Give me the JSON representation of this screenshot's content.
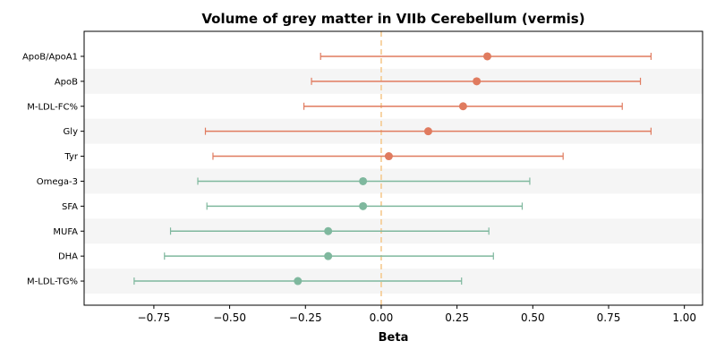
{
  "chart_data": {
    "type": "forest",
    "title": "Volume of grey matter in VIIb Cerebellum (vermis)",
    "xlabel": "Beta",
    "ylabel": "",
    "xlim": [
      -0.98,
      1.06
    ],
    "xticks": [
      -0.75,
      -0.5,
      -0.25,
      0.0,
      0.25,
      0.5,
      0.75,
      1.0
    ],
    "xtick_labels": [
      "−0.75",
      "−0.50",
      "−0.25",
      "0.00",
      "0.25",
      "0.50",
      "0.75",
      "1.00"
    ],
    "reference_line": 0.0,
    "grid": false,
    "legend": "none",
    "row_banding": true,
    "colors": {
      "positive": "#e07b5f",
      "negative": "#7fb89e",
      "reference": "#f5c98e",
      "band": "#f5f5f5"
    },
    "rows": [
      {
        "label": "ApoB/ApoA1",
        "beta": 0.35,
        "lower": -0.2,
        "upper": 0.89,
        "color": "#e07b5f"
      },
      {
        "label": "ApoB",
        "beta": 0.315,
        "lower": -0.23,
        "upper": 0.855,
        "color": "#e07b5f"
      },
      {
        "label": "M-LDL-FC%",
        "beta": 0.27,
        "lower": -0.255,
        "upper": 0.795,
        "color": "#e07b5f"
      },
      {
        "label": "Gly",
        "beta": 0.155,
        "lower": -0.58,
        "upper": 0.89,
        "color": "#e07b5f"
      },
      {
        "label": "Tyr",
        "beta": 0.025,
        "lower": -0.555,
        "upper": 0.6,
        "color": "#e07b5f"
      },
      {
        "label": "Omega-3",
        "beta": -0.06,
        "lower": -0.605,
        "upper": 0.49,
        "color": "#7fb89e"
      },
      {
        "label": "SFA",
        "beta": -0.06,
        "lower": -0.575,
        "upper": 0.465,
        "color": "#7fb89e"
      },
      {
        "label": "MUFA",
        "beta": -0.175,
        "lower": -0.695,
        "upper": 0.355,
        "color": "#7fb89e"
      },
      {
        "label": "DHA",
        "beta": -0.175,
        "lower": -0.715,
        "upper": 0.37,
        "color": "#7fb89e"
      },
      {
        "label": "M-LDL-TG%",
        "beta": -0.275,
        "lower": -0.815,
        "upper": 0.265,
        "color": "#7fb89e"
      }
    ]
  }
}
